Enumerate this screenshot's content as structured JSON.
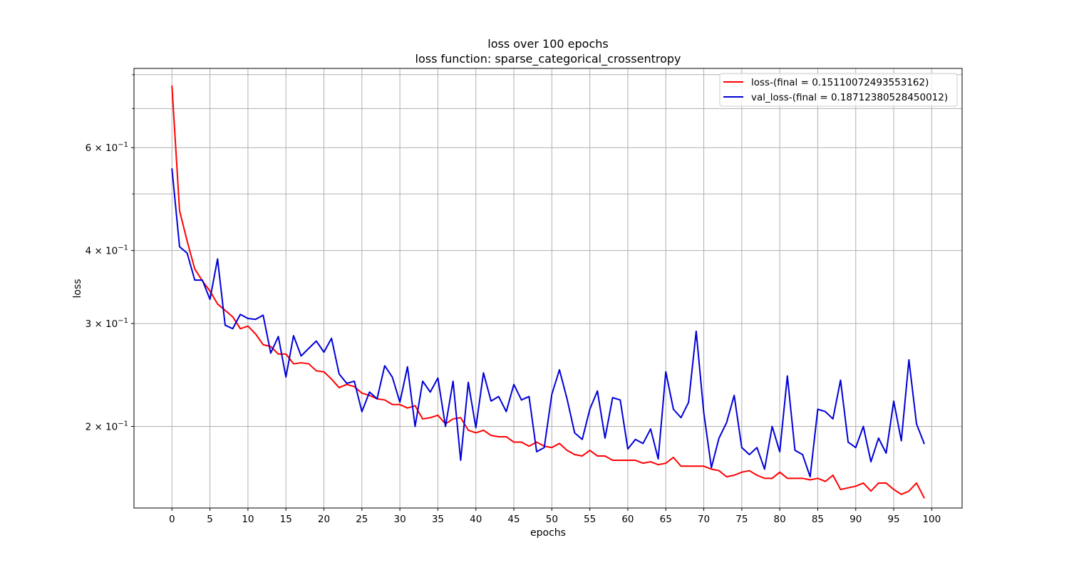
{
  "chart_data": {
    "type": "line",
    "title": "loss over 100 epochs",
    "subtitle": "loss function: sparse_categorical_crossentropy",
    "xlabel": "epochs",
    "ylabel": "loss",
    "yscale": "log",
    "xlim": [
      -5,
      104
    ],
    "ylim": [
      0.145,
      0.82
    ],
    "grid": true,
    "legend_position": "top-right",
    "x_ticks": [
      0,
      5,
      10,
      15,
      20,
      25,
      30,
      35,
      40,
      45,
      50,
      55,
      60,
      65,
      70,
      75,
      80,
      85,
      90,
      95,
      100
    ],
    "y_major_ticks": [
      {
        "value": 0.2,
        "base": "2",
        "mult": "×",
        "ten": "10",
        "exp": "−1"
      },
      {
        "value": 0.3,
        "base": "3",
        "mult": "×",
        "ten": "10",
        "exp": "−1"
      },
      {
        "value": 0.4,
        "base": "4",
        "mult": "×",
        "ten": "10",
        "exp": "−1"
      },
      {
        "value": 0.6,
        "base": "6",
        "mult": "×",
        "ten": "10",
        "exp": "−1"
      }
    ],
    "y_minor_ticks": [
      0.5,
      0.7,
      0.8
    ],
    "series": [
      {
        "name": "loss-(final = 0.15110072493553162)",
        "color": "#ff0000",
        "values": [
          0.765,
          0.468,
          0.415,
          0.372,
          0.355,
          0.341,
          0.324,
          0.316,
          0.308,
          0.294,
          0.297,
          0.288,
          0.276,
          0.274,
          0.266,
          0.266,
          0.256,
          0.257,
          0.256,
          0.249,
          0.248,
          0.241,
          0.233,
          0.236,
          0.234,
          0.228,
          0.226,
          0.223,
          0.222,
          0.218,
          0.218,
          0.215,
          0.217,
          0.206,
          0.207,
          0.209,
          0.202,
          0.206,
          0.207,
          0.197,
          0.195,
          0.197,
          0.193,
          0.192,
          0.192,
          0.188,
          0.188,
          0.185,
          0.188,
          0.185,
          0.184,
          0.187,
          0.182,
          0.179,
          0.178,
          0.182,
          0.178,
          0.178,
          0.175,
          0.175,
          0.175,
          0.175,
          0.173,
          0.174,
          0.172,
          0.173,
          0.177,
          0.171,
          0.171,
          0.171,
          0.171,
          0.169,
          0.168,
          0.164,
          0.165,
          0.167,
          0.168,
          0.165,
          0.163,
          0.163,
          0.167,
          0.163,
          0.163,
          0.163,
          0.162,
          0.163,
          0.161,
          0.165,
          0.156,
          0.157,
          0.158,
          0.16,
          0.155,
          0.16,
          0.16,
          0.156,
          0.153,
          0.155,
          0.16,
          0.151
        ]
      },
      {
        "name": "val_loss-(final = 0.18712380528450012)",
        "color": "#0000d8",
        "values": [
          0.552,
          0.406,
          0.396,
          0.356,
          0.356,
          0.33,
          0.387,
          0.298,
          0.294,
          0.311,
          0.306,
          0.305,
          0.31,
          0.267,
          0.285,
          0.243,
          0.286,
          0.264,
          0.272,
          0.28,
          0.268,
          0.283,
          0.246,
          0.237,
          0.239,
          0.212,
          0.229,
          0.223,
          0.254,
          0.243,
          0.22,
          0.253,
          0.2,
          0.239,
          0.229,
          0.242,
          0.2,
          0.239,
          0.175,
          0.238,
          0.199,
          0.247,
          0.221,
          0.225,
          0.212,
          0.236,
          0.222,
          0.225,
          0.181,
          0.184,
          0.227,
          0.25,
          0.223,
          0.195,
          0.19,
          0.214,
          0.23,
          0.191,
          0.224,
          0.222,
          0.183,
          0.19,
          0.187,
          0.198,
          0.176,
          0.248,
          0.214,
          0.207,
          0.22,
          0.291,
          0.211,
          0.17,
          0.191,
          0.203,
          0.226,
          0.184,
          0.179,
          0.184,
          0.169,
          0.2,
          0.181,
          0.244,
          0.182,
          0.179,
          0.164,
          0.214,
          0.212,
          0.206,
          0.24,
          0.188,
          0.184,
          0.2,
          0.174,
          0.191,
          0.18,
          0.221,
          0.189,
          0.26,
          0.202,
          0.187
        ]
      }
    ]
  }
}
